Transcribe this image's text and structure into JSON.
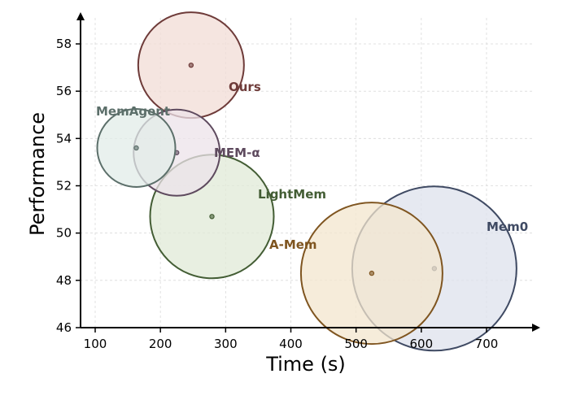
{
  "chart_data": {
    "type": "scatter",
    "title": "",
    "xlabel": "Time (s)",
    "ylabel": "Performance",
    "xlim": [
      80,
      770
    ],
    "ylim": [
      46,
      59
    ],
    "x_ticks": [
      100,
      200,
      300,
      400,
      500,
      600,
      700
    ],
    "y_ticks": [
      46,
      48,
      50,
      52,
      54,
      56,
      58
    ],
    "grid": true,
    "legend": "none",
    "series": [
      {
        "name": "Ours",
        "x": 247,
        "y": 57.1,
        "size": 65,
        "color": "#6e3b39",
        "fill": "#f1dcd6"
      },
      {
        "name": "MemAgent",
        "x": 163,
        "y": 53.6,
        "size": 48,
        "color": "#5c6f6a",
        "fill": "#e2ece8"
      },
      {
        "name": "MEM-α",
        "x": 225,
        "y": 53.4,
        "size": 53,
        "color": "#5e4a5e",
        "fill": "#ece3ea"
      },
      {
        "name": "LightMem",
        "x": 279,
        "y": 50.7,
        "size": 76,
        "color": "#435d34",
        "fill": "#e0ead7"
      },
      {
        "name": "A-Mem",
        "x": 524,
        "y": 48.3,
        "size": 87,
        "color": "#7f5520",
        "fill": "#f3e5ce"
      },
      {
        "name": "Mem0",
        "x": 620,
        "y": 48.5,
        "size": 101,
        "color": "#3f4a63",
        "fill": "#dde1ec"
      }
    ]
  }
}
